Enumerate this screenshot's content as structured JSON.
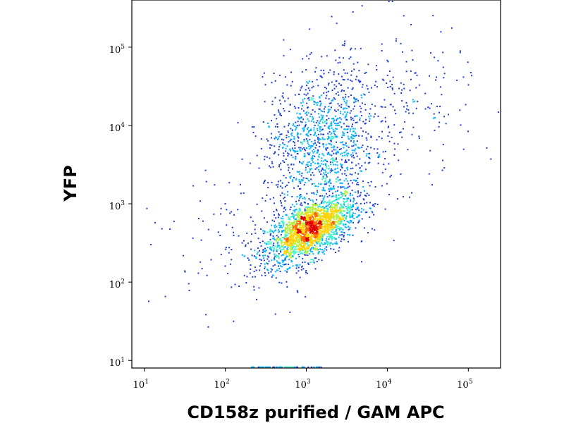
{
  "chart_data": {
    "type": "scatter",
    "style": "density-colored dot plot (flow cytometry)",
    "title": "",
    "xlabel": "CD158z purified / GAM APC",
    "ylabel": "YFP",
    "xscale": "log",
    "yscale": "log",
    "xlim": [
      7,
      250000
    ],
    "ylim": [
      8,
      400000
    ],
    "grid": false,
    "legend": "none",
    "x_ticks": [
      {
        "base": "10",
        "exp": "1",
        "value": 10
      },
      {
        "base": "10",
        "exp": "2",
        "value": 100
      },
      {
        "base": "10",
        "exp": "3",
        "value": 1000
      },
      {
        "base": "10",
        "exp": "4",
        "value": 10000
      },
      {
        "base": "10",
        "exp": "5",
        "value": 100000
      }
    ],
    "y_ticks": [
      {
        "base": "10",
        "exp": "1",
        "value": 10
      },
      {
        "base": "10",
        "exp": "2",
        "value": 100
      },
      {
        "base": "10",
        "exp": "3",
        "value": 1000
      },
      {
        "base": "10",
        "exp": "4",
        "value": 10000
      },
      {
        "base": "10",
        "exp": "5",
        "value": 100000
      }
    ],
    "colormap": [
      "#0a0a8c",
      "#1f3cd2",
      "#00b4ff",
      "#3cf0c8",
      "#b4f03c",
      "#ffd200",
      "#ff6400",
      "#dc0000"
    ],
    "populations": [
      {
        "center_x": 1100,
        "center_y": 480,
        "spread_x_decades": 0.28,
        "spread_y_decades": 0.22,
        "correlation": 0.6,
        "count": 2200
      },
      {
        "center_x": 1500,
        "center_y": 6000,
        "spread_x_decades": 0.35,
        "spread_y_decades": 0.45,
        "correlation": 0.1,
        "count": 1100
      },
      {
        "center_x": 9000,
        "center_y": 20000,
        "spread_x_decades": 0.55,
        "spread_y_decades": 0.5,
        "correlation": 0.0,
        "count": 250
      },
      {
        "center_x": 200,
        "center_y": 400,
        "spread_x_decades": 0.6,
        "spread_y_decades": 0.5,
        "correlation": 0.3,
        "count": 120
      }
    ],
    "notes_on_axis": "events piled near x-axis floor between 10^2 and 10^3"
  }
}
